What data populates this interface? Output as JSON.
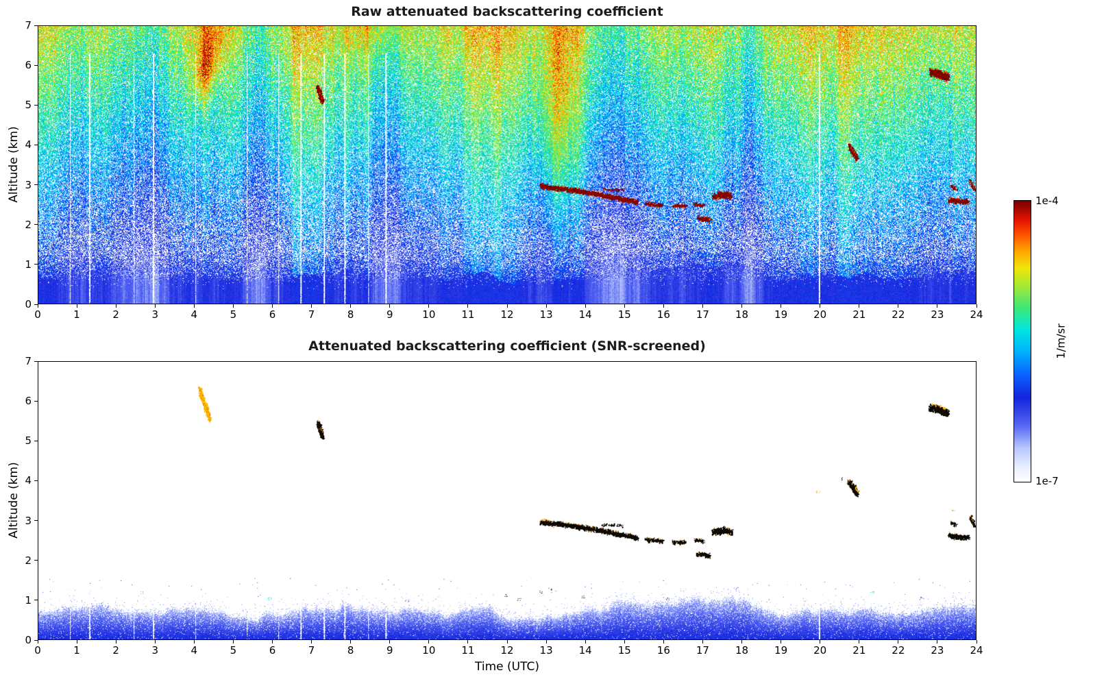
{
  "figure": {
    "background_color": "#ffffff",
    "colorbar": {
      "max_label": "1e-4",
      "min_label": "1e-7",
      "units_label": "1/m/sr",
      "scale": "log",
      "stops": [
        [
          0.0,
          "#ffffff"
        ],
        [
          0.05,
          "#eaf0ff"
        ],
        [
          0.12,
          "#b8c6ff"
        ],
        [
          0.2,
          "#5566f2"
        ],
        [
          0.3,
          "#1424dd"
        ],
        [
          0.38,
          "#0a62ff"
        ],
        [
          0.46,
          "#00b0ff"
        ],
        [
          0.54,
          "#00e6e0"
        ],
        [
          0.62,
          "#3fe878"
        ],
        [
          0.7,
          "#a8e832"
        ],
        [
          0.76,
          "#f0e60c"
        ],
        [
          0.82,
          "#ffa800"
        ],
        [
          0.88,
          "#ff5200"
        ],
        [
          0.93,
          "#e61400"
        ],
        [
          1.0,
          "#7a0000"
        ]
      ]
    }
  },
  "chart_data": [
    {
      "type": "heatmap",
      "title": "Raw attenuated backscattering coefficient",
      "xlabel": "",
      "ylabel": "Altitude (km)",
      "xlim": [
        0,
        24
      ],
      "ylim": [
        0,
        7
      ],
      "xticks": [
        0,
        1,
        2,
        3,
        4,
        5,
        6,
        7,
        8,
        9,
        10,
        11,
        12,
        13,
        14,
        15,
        16,
        17,
        18,
        19,
        20,
        21,
        22,
        23,
        24
      ],
      "yticks": [
        0,
        1,
        2,
        3,
        4,
        5,
        6,
        7
      ],
      "value_units": "1/m/sr",
      "value_min": "1e-7",
      "value_max": "1e-4",
      "description": "Raw lidar attenuated backscatter curtain: noise level rises with altitude (white/blue speckle near 1-3 km, cyan-green 3-5 km, green-yellow-orange 5-7 km); solid blue boundary layer below ~1 km; dark-red cloud features embedded.",
      "gap_times": [
        0.82,
        1.32,
        2.45,
        2.95,
        4.03,
        5.35,
        6.15,
        6.72,
        7.32,
        7.85,
        8.45,
        8.9,
        20.0
      ],
      "features": [
        {
          "kind": "plume-soft",
          "label": "lofted aerosol plume",
          "gauss": {
            "cx": 4.28,
            "cy": 5.95,
            "sx": 0.2,
            "sy": 0.55,
            "amp": 0.24,
            "tilt": 0.12
          }
        },
        {
          "kind": "column",
          "label": "enhanced signal column",
          "gauss": {
            "cx": 13.3,
            "cy": 4.9,
            "sx": 0.4,
            "sy": 2.1,
            "amp": 0.17,
            "tilt": 0
          }
        },
        {
          "kind": "column",
          "label": "warm patch near top",
          "gauss": {
            "cx": 4.4,
            "cy": 6.9,
            "sx": 0.35,
            "sy": 0.55,
            "amp": 0.1,
            "tilt": 0
          }
        },
        {
          "kind": "column",
          "label": "warm patch near top",
          "gauss": {
            "cx": 8.6,
            "cy": 7.0,
            "sx": 0.6,
            "sy": 0.55,
            "amp": 0.07,
            "tilt": 0
          }
        },
        {
          "kind": "cloud",
          "label": "cloud",
          "path": [
            [
              7.14,
              5.47
            ],
            [
              7.2,
              5.3
            ],
            [
              7.26,
              5.12
            ]
          ],
          "thick": 0.1,
          "density": 1.6
        },
        {
          "kind": "cloud",
          "label": "descending cloud layer",
          "path": [
            [
              12.85,
              2.97
            ],
            [
              13.3,
              2.92
            ],
            [
              13.8,
              2.85
            ],
            [
              14.3,
              2.77
            ],
            [
              14.8,
              2.67
            ],
            [
              15.33,
              2.57
            ]
          ],
          "thick": 0.085,
          "density": 1.8
        },
        {
          "kind": "cloud",
          "label": "cloud wisps",
          "path": [
            [
              14.45,
              2.9
            ],
            [
              14.95,
              2.88
            ]
          ],
          "thick": 0.04,
          "density": 0.5
        },
        {
          "kind": "cloud",
          "label": "cloud fragment",
          "path": [
            [
              15.55,
              2.52
            ],
            [
              15.95,
              2.5
            ]
          ],
          "thick": 0.07,
          "density": 1.2
        },
        {
          "kind": "cloud",
          "label": "cloud fragment",
          "path": [
            [
              16.25,
              2.47
            ],
            [
              16.55,
              2.46
            ]
          ],
          "thick": 0.06,
          "density": 1.2
        },
        {
          "kind": "cloud",
          "label": "cloud fragment",
          "path": [
            [
              16.8,
              2.52
            ],
            [
              17.02,
              2.49
            ]
          ],
          "thick": 0.06,
          "density": 1.2
        },
        {
          "kind": "cloud",
          "label": "low cloud patch",
          "path": [
            [
              16.88,
              2.17
            ],
            [
              17.18,
              2.12
            ]
          ],
          "thick": 0.08,
          "density": 1.4
        },
        {
          "kind": "cloud",
          "label": "cloud patch",
          "path": [
            [
              17.28,
              2.72
            ],
            [
              17.55,
              2.76
            ],
            [
              17.72,
              2.72
            ]
          ],
          "thick": 0.12,
          "density": 1.6
        },
        {
          "kind": "cloud",
          "label": "cloud blob",
          "path": [
            [
              20.75,
              3.98
            ],
            [
              20.88,
              3.78
            ],
            [
              20.95,
              3.68
            ]
          ],
          "thick": 0.11,
          "density": 1.6
        },
        {
          "kind": "cloud",
          "label": "cloud blob",
          "path": [
            [
              22.83,
              5.85
            ],
            [
              23.05,
              5.8
            ],
            [
              23.28,
              5.72
            ]
          ],
          "thick": 0.15,
          "density": 1.8
        },
        {
          "kind": "cloud",
          "label": "cloud streak",
          "path": [
            [
              23.3,
              2.62
            ],
            [
              23.55,
              2.6
            ],
            [
              23.78,
              2.58
            ]
          ],
          "thick": 0.09,
          "density": 1.6
        },
        {
          "kind": "cloud",
          "label": "cloud wisp",
          "path": [
            [
              23.35,
              2.97
            ],
            [
              23.48,
              2.9
            ]
          ],
          "thick": 0.05,
          "density": 0.7
        },
        {
          "kind": "cloud",
          "label": "cloud at right edge",
          "path": [
            [
              23.85,
              3.1
            ],
            [
              23.97,
              2.85
            ]
          ],
          "thick": 0.06,
          "density": 0.9
        }
      ]
    },
    {
      "type": "heatmap",
      "title": "Attenuated backscattering coefficient (SNR-screened)",
      "xlabel": "Time (UTC)",
      "ylabel": "Altitude (km)",
      "xlim": [
        0,
        24
      ],
      "ylim": [
        0,
        7
      ],
      "xticks": [
        0,
        1,
        2,
        3,
        4,
        5,
        6,
        7,
        8,
        9,
        10,
        11,
        12,
        13,
        14,
        15,
        16,
        17,
        18,
        19,
        20,
        21,
        22,
        23,
        24
      ],
      "yticks": [
        0,
        1,
        2,
        3,
        4,
        5,
        6,
        7
      ],
      "value_units": "1/m/sr",
      "value_min": "1e-7",
      "value_max": "1e-4",
      "description": "SNR-screened backscatter: white where noise was removed; blue boundary-layer aerosol below ~1 km with variable top (bulge to ~1 km near 16-17 UTC, dip near 12.3 UTC); saturated cloud features rendered black with yellow-orange fringes; yellow-orange aerosol plume near 04:15 UTC at 5.5-6.3 km.",
      "gap_times": [
        0.82,
        1.32,
        2.45,
        2.95,
        4.03,
        5.35,
        6.15,
        6.72,
        7.32,
        7.85,
        8.45,
        8.9,
        20.0
      ],
      "boundary_layer": {
        "base": 0.62,
        "peaks": [
          {
            "t": 0.3,
            "amp": 0.1,
            "w": 0.9
          },
          {
            "t": 2.0,
            "amp": 0.12,
            "w": 1.5
          },
          {
            "t": 8.6,
            "amp": 0.12,
            "w": 1.4
          },
          {
            "t": 14.8,
            "amp": 0.06,
            "w": 1.0
          },
          {
            "t": 16.9,
            "amp": 0.3,
            "w": 1.5
          },
          {
            "t": 21.0,
            "amp": 0.12,
            "w": 2.0
          },
          {
            "t": 23.6,
            "amp": 0.1,
            "w": 0.8
          }
        ],
        "dips": [
          {
            "t": 12.35,
            "amp": 0.1,
            "w": 1.1
          },
          {
            "t": 5.3,
            "amp": 0.04,
            "w": 0.9
          },
          {
            "t": 18.9,
            "amp": 0.05,
            "w": 0.7
          }
        ]
      },
      "specks": [
        [
          2.65,
          1.18,
          "#8fa8e8"
        ],
        [
          5.9,
          1.03,
          "#00d2d2"
        ],
        [
          9.45,
          0.97,
          "#6f86e0"
        ],
        [
          11.95,
          1.12,
          "#10203a"
        ],
        [
          12.3,
          1.02,
          "#2a3a58"
        ],
        [
          12.87,
          1.2,
          "#10203a"
        ],
        [
          13.1,
          1.28,
          "#22324e"
        ],
        [
          13.95,
          1.08,
          "#10203a"
        ],
        [
          16.1,
          1.03,
          "#20304a"
        ],
        [
          17.85,
          1.28,
          "#6f86e0"
        ],
        [
          19.95,
          3.72,
          "#ff9500"
        ],
        [
          20.6,
          4.06,
          "#141414"
        ],
        [
          21.35,
          1.18,
          "#00c8c8"
        ],
        [
          22.6,
          1.04,
          "#5a74d8"
        ],
        [
          23.42,
          3.25,
          "#ff9500"
        ]
      ],
      "features": [
        {
          "kind": "plume",
          "label": "lofted aerosol plume",
          "path": [
            [
              4.12,
              6.32
            ],
            [
              4.2,
              6.05
            ],
            [
              4.3,
              5.8
            ],
            [
              4.4,
              5.55
            ]
          ],
          "thick": 0.14,
          "density": 1.2
        },
        {
          "kind": "cloud",
          "label": "cloud",
          "path": [
            [
              7.14,
              5.47
            ],
            [
              7.2,
              5.3
            ],
            [
              7.26,
              5.12
            ]
          ],
          "thick": 0.1,
          "density": 1.6
        },
        {
          "kind": "cloud",
          "label": "descending cloud layer",
          "path": [
            [
              12.85,
              2.97
            ],
            [
              13.3,
              2.92
            ],
            [
              13.8,
              2.85
            ],
            [
              14.3,
              2.77
            ],
            [
              14.8,
              2.67
            ],
            [
              15.33,
              2.57
            ]
          ],
          "thick": 0.085,
          "density": 1.8
        },
        {
          "kind": "cloud",
          "label": "cloud wisps",
          "path": [
            [
              14.45,
              2.9
            ],
            [
              14.95,
              2.88
            ]
          ],
          "thick": 0.04,
          "density": 0.5
        },
        {
          "kind": "cloud",
          "label": "cloud fragment",
          "path": [
            [
              15.55,
              2.52
            ],
            [
              15.95,
              2.5
            ]
          ],
          "thick": 0.07,
          "density": 1.2
        },
        {
          "kind": "cloud",
          "label": "cloud fragment",
          "path": [
            [
              16.25,
              2.47
            ],
            [
              16.55,
              2.46
            ]
          ],
          "thick": 0.06,
          "density": 1.2
        },
        {
          "kind": "cloud",
          "label": "cloud fragment",
          "path": [
            [
              16.8,
              2.52
            ],
            [
              17.02,
              2.49
            ]
          ],
          "thick": 0.06,
          "density": 1.2
        },
        {
          "kind": "cloud",
          "label": "low cloud patch",
          "path": [
            [
              16.88,
              2.17
            ],
            [
              17.18,
              2.12
            ]
          ],
          "thick": 0.08,
          "density": 1.4
        },
        {
          "kind": "cloud",
          "label": "cloud patch",
          "path": [
            [
              17.28,
              2.72
            ],
            [
              17.55,
              2.76
            ],
            [
              17.72,
              2.72
            ]
          ],
          "thick": 0.12,
          "density": 1.6
        },
        {
          "kind": "cloud",
          "label": "cloud blob",
          "path": [
            [
              20.75,
              3.98
            ],
            [
              20.88,
              3.78
            ],
            [
              20.95,
              3.68
            ]
          ],
          "thick": 0.11,
          "density": 1.6
        },
        {
          "kind": "cloud",
          "label": "cloud blob",
          "path": [
            [
              22.83,
              5.85
            ],
            [
              23.05,
              5.8
            ],
            [
              23.28,
              5.72
            ]
          ],
          "thick": 0.15,
          "density": 1.8
        },
        {
          "kind": "cloud",
          "label": "cloud streak",
          "path": [
            [
              23.3,
              2.62
            ],
            [
              23.55,
              2.6
            ],
            [
              23.78,
              2.58
            ]
          ],
          "thick": 0.09,
          "density": 1.6
        },
        {
          "kind": "cloud",
          "label": "cloud wisp",
          "path": [
            [
              23.35,
              2.97
            ],
            [
              23.48,
              2.9
            ]
          ],
          "thick": 0.05,
          "density": 0.7
        },
        {
          "kind": "cloud",
          "label": "cloud at right edge",
          "path": [
            [
              23.85,
              3.1
            ],
            [
              23.97,
              2.85
            ]
          ],
          "thick": 0.06,
          "density": 0.9
        }
      ]
    }
  ]
}
